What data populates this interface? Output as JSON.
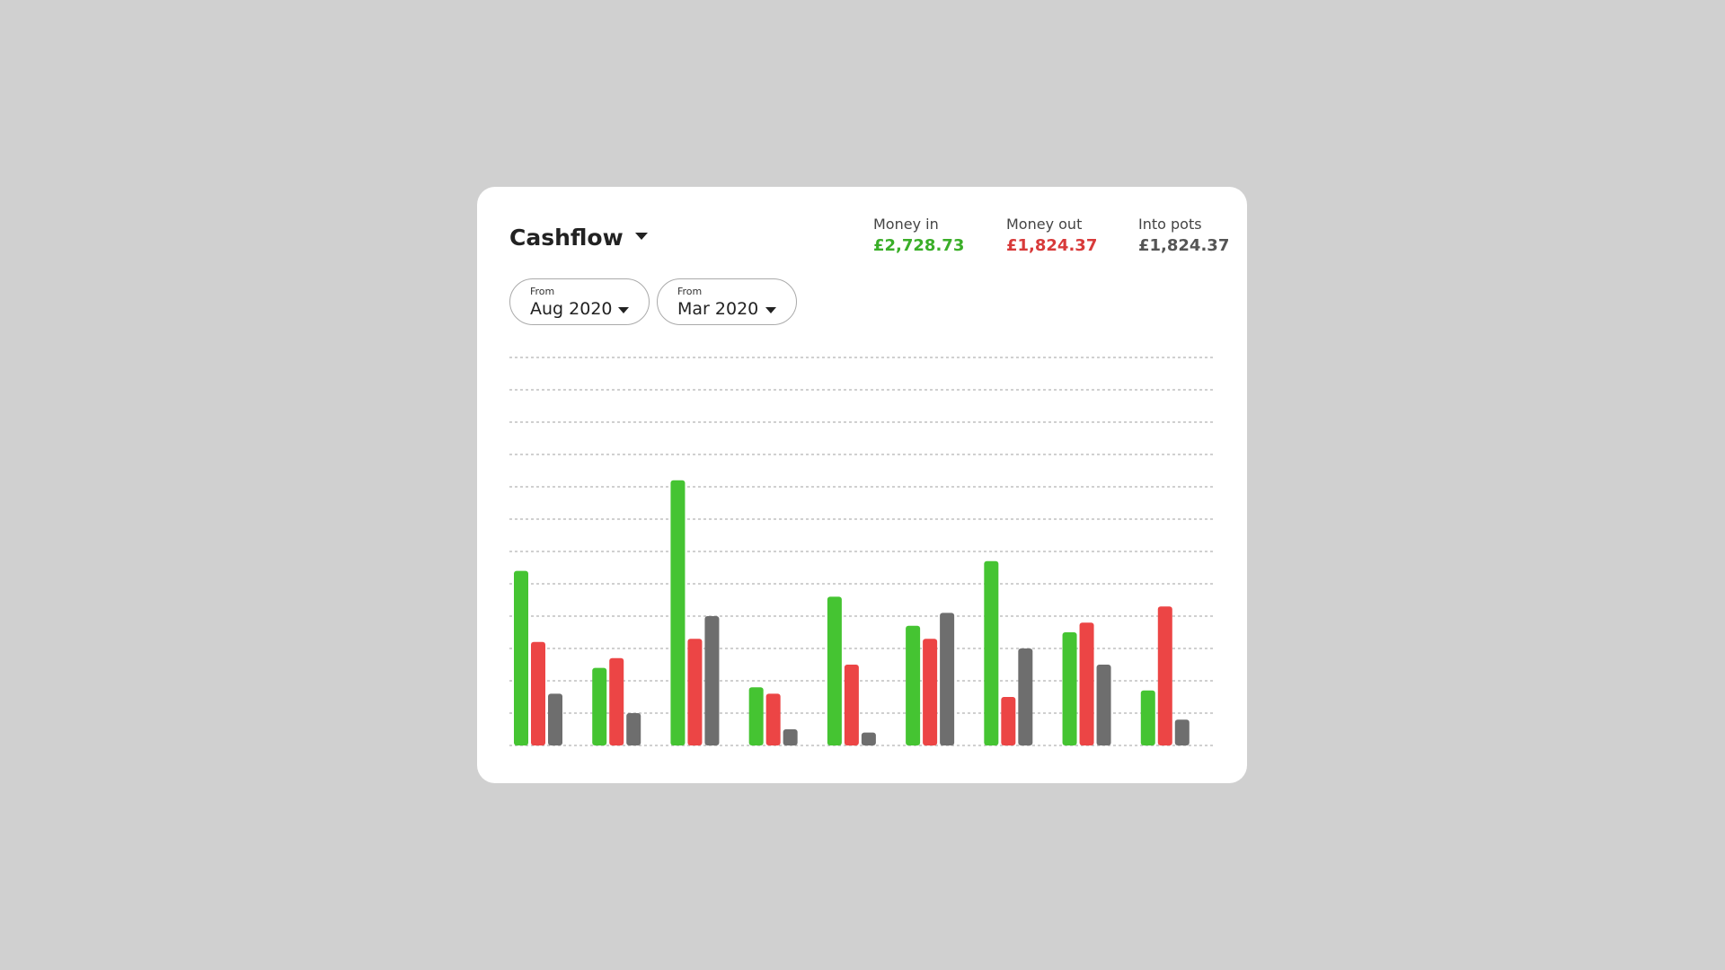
{
  "header": {
    "title": "Cashflow"
  },
  "filters": [
    {
      "label": "From",
      "value": "Aug 2020"
    },
    {
      "label": "From",
      "value": "Mar 2020"
    }
  ],
  "summary": [
    {
      "label": "Money in",
      "value": "£2,728.73",
      "color": "#3aae28"
    },
    {
      "label": "Money out",
      "value": "£1,824.37",
      "color": "#d83a3a"
    },
    {
      "label": "Into pots",
      "value": "£1,824.37",
      "color": "#555555"
    }
  ],
  "chart_data": {
    "type": "bar",
    "categories": [
      null,
      null,
      null,
      null,
      null,
      null,
      null,
      null,
      null
    ],
    "series": [
      {
        "color": "#45c432",
        "values": [
          5.4,
          2.4,
          8.2,
          1.8,
          4.6,
          3.7,
          5.7,
          3.5,
          1.7
        ]
      },
      {
        "color": "#ec4545",
        "values": [
          3.2,
          2.7,
          3.3,
          1.6,
          2.5,
          3.3,
          1.5,
          3.8,
          4.3
        ]
      },
      {
        "color": "#6e6e6e",
        "values": [
          1.6,
          1.0,
          4.0,
          0.5,
          0.4,
          4.1,
          3.0,
          2.5,
          0.8
        ]
      }
    ],
    "ylim": [
      0,
      12
    ],
    "yticks": [
      0,
      1,
      2,
      3,
      4,
      5,
      6,
      7,
      8,
      9,
      10,
      11,
      12
    ],
    "grid": true
  }
}
